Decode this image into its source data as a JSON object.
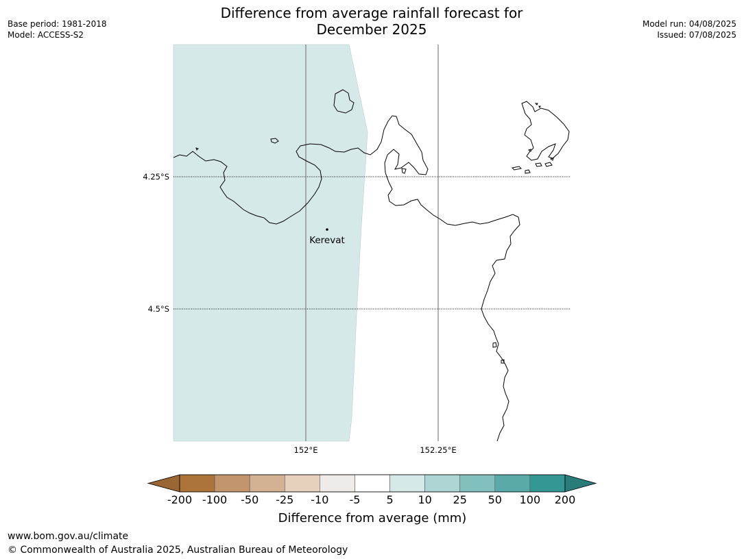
{
  "header": {
    "title_line1": "Difference from average rainfall forecast for",
    "title_line2": "December 2025",
    "base_period": "Base period: 1981-2018",
    "model": "Model: ACCESS-S2",
    "model_run": "Model run: 04/08/2025",
    "issued": "Issued: 07/08/2025"
  },
  "map": {
    "lat_labels": [
      "4.25°S",
      "4.5°S"
    ],
    "lon_labels": [
      "152°E",
      "152.25°E"
    ],
    "place": {
      "name": "Kerevat"
    },
    "shaded_category": "5 to 10",
    "shaded_color": "#d5e9e8",
    "coastline_color": "#000000"
  },
  "colorbar": {
    "title": "Difference from average (mm)",
    "ticks": [
      "-200",
      "-100",
      "-50",
      "-25",
      "-10",
      "-5",
      "5",
      "10",
      "25",
      "50",
      "100",
      "200"
    ],
    "colors": [
      "#ac7439",
      "#c3956c",
      "#d3b193",
      "#e7d1bd",
      "#efebe8",
      "#ffffff",
      "#d5e9e8",
      "#afd4d4",
      "#82c0bd",
      "#5aaaa9",
      "#339794"
    ],
    "under_color": "#9a6632",
    "over_color": "#2a7c7b"
  },
  "footer": {
    "url": "www.bom.gov.au/climate",
    "copyright": "© Commonwealth of Australia 2025, Australian Bureau of Meteorology"
  }
}
